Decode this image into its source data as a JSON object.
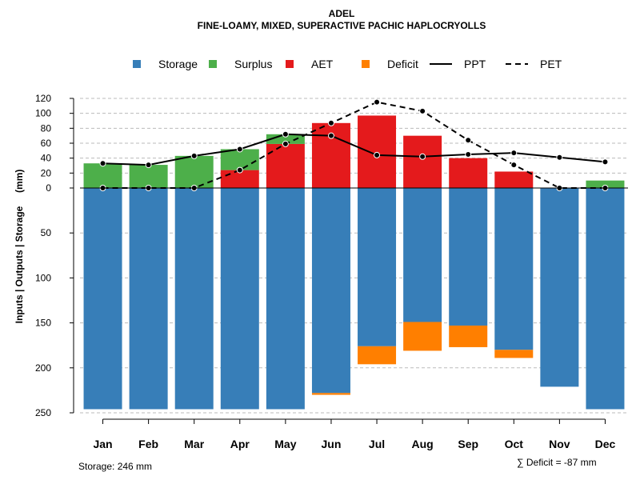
{
  "chart_data": {
    "type": "bar",
    "title": "ADEL",
    "subtitle": "FINE-LOAMY, MIXED, SUPERACTIVE PACHIC HAPLOCRYOLLS",
    "ylabel": "Inputs | Outputs | Storage     (mm)",
    "categories": [
      "Jan",
      "Feb",
      "Mar",
      "Apr",
      "May",
      "Jun",
      "Jul",
      "Aug",
      "Sep",
      "Oct",
      "Nov",
      "Dec"
    ],
    "y_upper_ticks": [
      0,
      20,
      40,
      60,
      80,
      100,
      120
    ],
    "y_lower_ticks": [
      0,
      50,
      100,
      150,
      200,
      250
    ],
    "upper_ylim": [
      0,
      120
    ],
    "lower_ylim": [
      0,
      250
    ],
    "legend": [
      "Storage",
      "Surplus",
      "AET",
      "Deficit",
      "PPT",
      "PET"
    ],
    "colors": {
      "Storage": "#377EB8",
      "Surplus": "#4DAF4A",
      "AET": "#E41A1C",
      "Deficit": "#FF7F00",
      "PPT": "#000000",
      "PET": "#000000"
    },
    "series": [
      {
        "name": "AET",
        "values": [
          0,
          0,
          0,
          24,
          59,
          87,
          97,
          70,
          40,
          22,
          0,
          0
        ]
      },
      {
        "name": "Surplus",
        "values": [
          33,
          31,
          43,
          28,
          13,
          0,
          0,
          0,
          0,
          0,
          0,
          10
        ]
      },
      {
        "name": "Storage",
        "values": [
          246,
          246,
          246,
          246,
          246,
          228,
          176,
          149,
          153,
          180,
          221,
          246
        ]
      },
      {
        "name": "Deficit",
        "values": [
          0,
          0,
          0,
          0,
          0,
          2,
          20,
          32,
          24,
          9,
          0,
          0
        ]
      },
      {
        "name": "PPT",
        "values": [
          33,
          31,
          43,
          52,
          72,
          70,
          44,
          42,
          45,
          47,
          41,
          35
        ]
      },
      {
        "name": "PET",
        "values": [
          0,
          0,
          0,
          24,
          59,
          87,
          115,
          103,
          64,
          31,
          0,
          0
        ]
      }
    ]
  },
  "footer": {
    "storage_label": "Storage: 246 mm",
    "deficit_label": "∑ Deficit = -87 mm"
  }
}
